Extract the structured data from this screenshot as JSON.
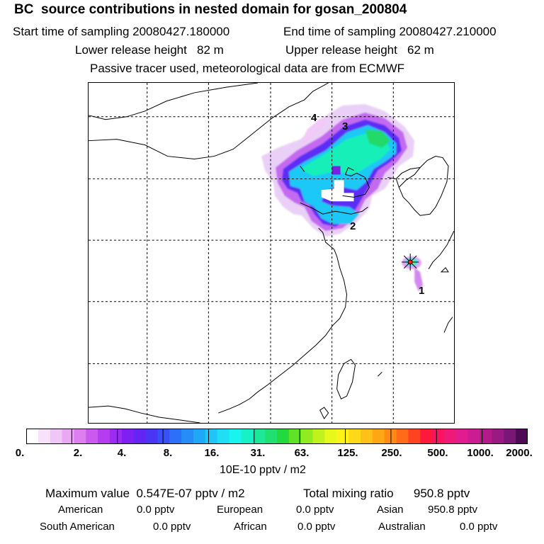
{
  "header": {
    "title": "BC  source contributions in nested domain for gosan_200804",
    "start_time": "Start time of sampling 20080427.180000",
    "end_time": "End time of sampling 20080427.210000",
    "lower_release": "Lower release height   82 m",
    "upper_release": "Upper release height   62 m",
    "tracer_note": "Passive tracer used, meteorological data are from ECMWF"
  },
  "map": {
    "markers": [
      "1",
      "2",
      "3",
      "4"
    ],
    "receptor_icon": "star-icon"
  },
  "colorbar": {
    "labels": [
      "0.",
      "2.",
      "4.",
      "8.",
      "16.",
      "31.",
      "63.",
      "125.",
      "250.",
      "500.",
      "1000.",
      "2000."
    ],
    "unit": "10E-10 pptv / m2",
    "colors": [
      "#ffffff",
      "#f7e2fa",
      "#f0c6f6",
      "#eaa8f2",
      "#dd7ff0",
      "#c95aef",
      "#b63cf0",
      "#9b2cf2",
      "#7f20f2",
      "#6425f4",
      "#4b35f5",
      "#3a50f7",
      "#2c70f8",
      "#238ef8",
      "#1fa8f8",
      "#20c4f7",
      "#1fdff4",
      "#18f4ee",
      "#18f0c8",
      "#1ce89c",
      "#1fe070",
      "#22d93e",
      "#60e227",
      "#90ec20",
      "#c0f31e",
      "#e6f91b",
      "#fff21a",
      "#ffd918",
      "#ffc017",
      "#ffa615",
      "#ff8b15",
      "#ff6b16",
      "#ff4221",
      "#ff1a3d",
      "#f8145e",
      "#ee1a7a",
      "#e01c90",
      "#cc1c92",
      "#b41a8a",
      "#9a1a82",
      "#7a1676",
      "#4e0a52"
    ]
  },
  "stats": {
    "max_value": "Maximum value  0.547E-07 pptv / m2",
    "total_mixing": "Total mixing ratio      950.8 pptv",
    "regions": [
      {
        "label": "American",
        "value": "0.0 pptv"
      },
      {
        "label": "European",
        "value": "0.0 pptv"
      },
      {
        "label": "Asian",
        "value": "950.8 pptv"
      },
      {
        "label": "South American",
        "value": "0.0 pptv"
      },
      {
        "label": "African",
        "value": "0.0 pptv"
      },
      {
        "label": "Australian",
        "value": "0.0 pptv"
      }
    ]
  }
}
